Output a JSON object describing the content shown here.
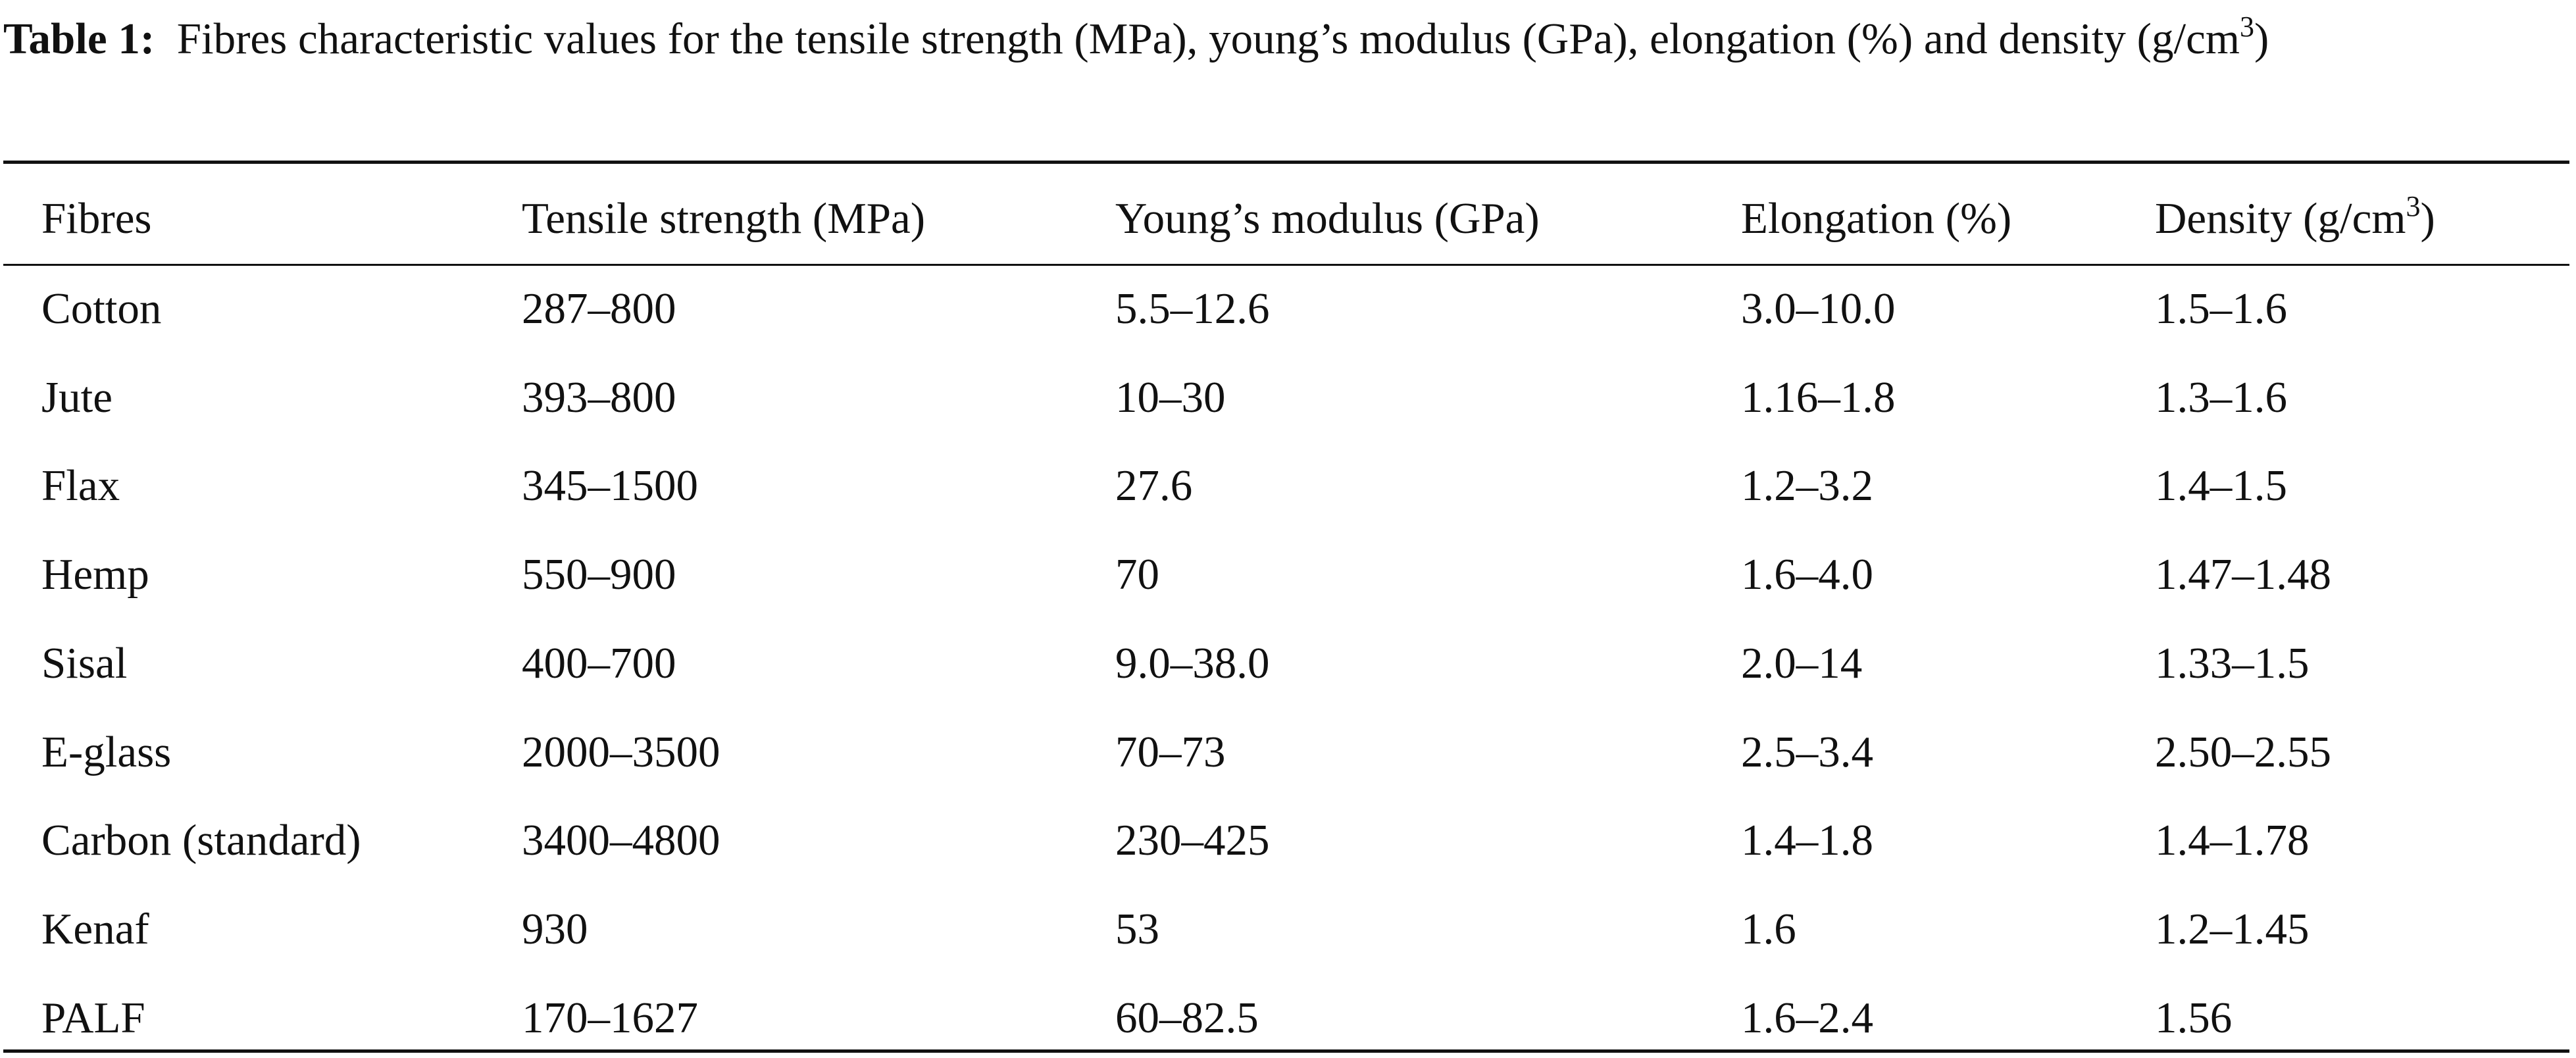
{
  "caption": {
    "label": "Table 1:",
    "text": "Fibres characteristic values for the tensile strength (MPa), young’s modulus (GPa), elongation (%) and density (g/cm",
    "superscript": "3",
    "closing": ")"
  },
  "headers": [
    "Fibres",
    "Tensile strength (MPa)",
    "Young’s modulus (GPa)",
    "Elongation (%)",
    "Density (g/cm"
  ],
  "density_superscript": "3",
  "density_closing": ")",
  "rows": [
    [
      "Cotton",
      "287–800",
      "5.5–12.6",
      "3.0–10.0",
      "1.5–1.6"
    ],
    [
      "Jute",
      "393–800",
      "10–30",
      "1.16–1.8",
      "1.3–1.6"
    ],
    [
      "Flax",
      "345–1500",
      "27.6",
      "1.2–3.2",
      "1.4–1.5"
    ],
    [
      "Hemp",
      "550–900",
      "70",
      "1.6–4.0",
      "1.47–1.48"
    ],
    [
      "Sisal",
      "400–700",
      "9.0–38.0",
      "2.0–14",
      "1.33–1.5"
    ],
    [
      "E-glass",
      "2000–3500",
      "70–73",
      "2.5–3.4",
      "2.50–2.55"
    ],
    [
      "Carbon (standard)",
      "3400–4800",
      "230–425",
      "1.4–1.8",
      "1.4–1.78"
    ],
    [
      "Kenaf",
      "930",
      "53",
      "1.6",
      "1.2–1.45"
    ],
    [
      "PALF",
      "170–1627",
      "60–82.5",
      "1.6–2.4",
      "1.56"
    ]
  ]
}
